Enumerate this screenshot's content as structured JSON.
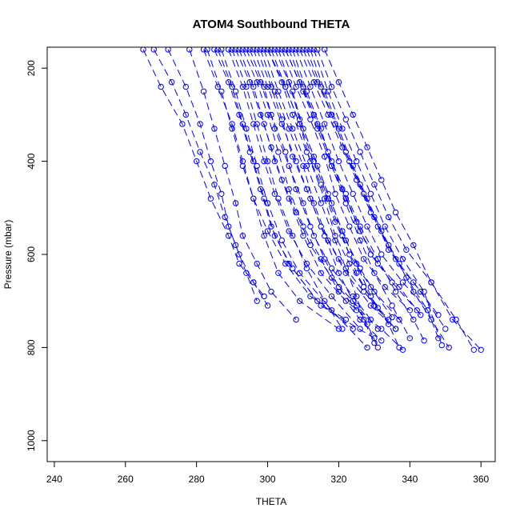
{
  "chart_data": {
    "type": "scatter",
    "title": "ATOM4 Southbound THETA",
    "xlabel": "THETA",
    "ylabel": "Pressure (mbar)",
    "xlim": [
      238,
      364
    ],
    "ylim": [
      1045,
      155
    ],
    "y_reversed": true,
    "x_ticks": [
      "240",
      "260",
      "280",
      "300",
      "320",
      "340",
      "360"
    ],
    "y_ticks": [
      "200",
      "400",
      "600",
      "800",
      "1000"
    ],
    "marker": "open-circle",
    "line_style": "dashed",
    "color": "#0000ff",
    "grid": false,
    "series": [
      {
        "x": [
          265,
          270,
          276,
          280,
          284,
          289,
          292,
          296,
          300
        ],
        "y": [
          160,
          240,
          320,
          400,
          480,
          560,
          620,
          660,
          710
        ]
      },
      {
        "x": [
          268,
          273,
          277,
          281,
          285,
          288,
          291,
          294,
          297
        ],
        "y": [
          160,
          230,
          300,
          380,
          450,
          520,
          580,
          640,
          700
        ]
      },
      {
        "x": [
          272,
          277,
          281,
          284,
          287,
          289,
          292,
          296,
          299
        ],
        "y": [
          160,
          240,
          320,
          400,
          470,
          540,
          600,
          660,
          690
        ]
      },
      {
        "x": [
          278,
          282,
          285,
          288,
          291,
          293,
          297,
          301,
          308
        ],
        "y": [
          160,
          250,
          330,
          410,
          490,
          560,
          620,
          680,
          740
        ]
      },
      {
        "x": [
          282,
          286,
          290,
          293,
          296,
          299,
          303,
          309,
          320
        ],
        "y": [
          160,
          240,
          320,
          400,
          480,
          560,
          640,
          700,
          760
        ]
      },
      {
        "x": [
          285,
          289,
          292,
          295,
          298,
          301,
          306,
          315,
          330
        ],
        "y": [
          160,
          230,
          300,
          380,
          460,
          540,
          620,
          710,
          780
        ]
      },
      {
        "x": [
          287,
          291,
          294,
          297,
          300,
          304,
          309,
          318,
          328
        ],
        "y": [
          160,
          250,
          330,
          410,
          490,
          570,
          640,
          720,
          800
        ]
      },
      {
        "x": [
          289,
          293,
          296,
          299,
          302,
          306,
          311,
          318,
          326
        ],
        "y": [
          160,
          240,
          320,
          400,
          470,
          550,
          620,
          690,
          760
        ]
      },
      {
        "x": [
          291,
          295,
          298,
          301,
          304,
          308,
          312,
          318,
          325,
          331
        ],
        "y": [
          160,
          230,
          300,
          370,
          440,
          510,
          580,
          650,
          710,
          760
        ]
      },
      {
        "x": [
          292,
          296,
          299,
          302,
          306,
          310,
          315,
          322,
          332,
          338
        ],
        "y": [
          160,
          240,
          320,
          400,
          480,
          560,
          640,
          700,
          760,
          805
        ]
      },
      {
        "x": [
          294,
          298,
          301,
          305,
          308,
          312,
          316,
          320,
          325
        ],
        "y": [
          160,
          230,
          300,
          380,
          460,
          540,
          610,
          670,
          720
        ]
      },
      {
        "x": [
          295,
          299,
          302,
          306,
          310,
          313,
          318,
          324,
          329
        ],
        "y": [
          160,
          240,
          330,
          410,
          490,
          560,
          630,
          690,
          740
        ]
      },
      {
        "x": [
          297,
          301,
          304,
          307,
          311,
          315,
          320,
          327,
          334
        ],
        "y": [
          160,
          240,
          310,
          390,
          460,
          540,
          610,
          680,
          740
        ]
      },
      {
        "x": [
          298,
          302,
          306,
          310,
          313,
          317,
          322,
          329,
          336
        ],
        "y": [
          160,
          250,
          330,
          410,
          490,
          570,
          640,
          710,
          760
        ]
      },
      {
        "x": [
          300,
          304,
          307,
          311,
          315,
          319,
          323,
          329,
          335
        ],
        "y": [
          160,
          230,
          300,
          380,
          450,
          530,
          600,
          670,
          735
        ]
      },
      {
        "x": [
          301,
          305,
          309,
          312,
          316,
          319,
          323,
          327,
          331
        ],
        "y": [
          160,
          240,
          320,
          400,
          480,
          560,
          620,
          670,
          715
        ]
      },
      {
        "x": [
          303,
          307,
          310,
          314,
          318,
          322,
          326,
          330,
          337
        ],
        "y": [
          160,
          250,
          330,
          410,
          490,
          570,
          630,
          680,
          740
        ]
      },
      {
        "x": [
          304,
          308,
          312,
          316,
          319,
          323,
          327,
          333,
          340
        ],
        "y": [
          160,
          240,
          310,
          390,
          470,
          540,
          610,
          670,
          720
        ]
      },
      {
        "x": [
          305,
          309,
          313,
          317,
          321,
          325,
          329,
          335,
          342
        ],
        "y": [
          160,
          230,
          300,
          380,
          460,
          530,
          600,
          660,
          720
        ]
      },
      {
        "x": [
          307,
          311,
          315,
          318,
          322,
          326,
          331,
          337,
          343
        ],
        "y": [
          160,
          250,
          330,
          410,
          480,
          550,
          620,
          670,
          730
        ]
      },
      {
        "x": [
          308,
          312,
          316,
          320,
          324,
          328,
          332,
          338,
          345
        ],
        "y": [
          160,
          240,
          320,
          400,
          470,
          540,
          600,
          660,
          720
        ]
      },
      {
        "x": [
          310,
          314,
          318,
          322,
          326,
          330,
          334,
          341,
          348
        ],
        "y": [
          160,
          230,
          300,
          380,
          450,
          520,
          590,
          660,
          730
        ]
      },
      {
        "x": [
          311,
          315,
          319,
          323,
          327,
          331,
          336,
          343,
          350
        ],
        "y": [
          160,
          240,
          320,
          400,
          470,
          540,
          610,
          680,
          760
        ]
      },
      {
        "x": [
          313,
          317,
          321,
          325,
          329,
          333,
          338,
          344,
          349
        ],
        "y": [
          160,
          250,
          330,
          400,
          470,
          540,
          610,
          680,
          795
        ]
      },
      {
        "x": [
          314,
          318,
          322,
          326,
          330,
          334,
          339,
          346,
          352,
          360
        ],
        "y": [
          160,
          240,
          310,
          380,
          450,
          520,
          590,
          660,
          740,
          805
        ]
      },
      {
        "x": [
          316,
          320,
          324,
          328,
          332,
          336,
          341,
          346,
          353,
          358
        ],
        "y": [
          160,
          230,
          300,
          370,
          440,
          510,
          580,
          660,
          740,
          805
        ]
      },
      {
        "x": [
          306,
          310,
          314,
          318,
          322,
          326,
          331,
          336,
          341,
          344
        ],
        "y": [
          160,
          240,
          320,
          400,
          470,
          540,
          610,
          680,
          740,
          785
        ]
      },
      {
        "x": [
          309,
          313,
          317,
          321,
          325,
          329,
          334,
          339,
          345,
          348
        ],
        "y": [
          160,
          230,
          300,
          370,
          440,
          510,
          580,
          650,
          720,
          780
        ]
      },
      {
        "x": [
          312,
          316,
          320,
          324,
          328,
          332,
          337,
          341,
          346,
          351
        ],
        "y": [
          160,
          250,
          330,
          410,
          480,
          550,
          620,
          680,
          740,
          800
        ]
      },
      {
        "x": [
          296,
          300,
          304,
          308,
          312,
          316,
          320,
          324,
          328,
          331
        ],
        "y": [
          160,
          240,
          320,
          400,
          480,
          560,
          640,
          700,
          750,
          800
        ]
      },
      {
        "x": [
          299,
          303,
          307,
          311,
          315,
          319,
          322,
          325,
          327,
          330
        ],
        "y": [
          160,
          250,
          330,
          410,
          490,
          570,
          630,
          690,
          740,
          790
        ]
      },
      {
        "x": [
          302,
          306,
          309,
          313,
          317,
          321,
          325,
          329,
          334,
          337
        ],
        "y": [
          160,
          230,
          310,
          390,
          470,
          550,
          620,
          690,
          750,
          800
        ]
      },
      {
        "x": [
          290,
          294,
          297,
          300,
          303,
          307,
          311,
          316,
          321
        ],
        "y": [
          160,
          240,
          320,
          400,
          480,
          560,
          630,
          700,
          760
        ]
      },
      {
        "x": [
          293,
          297,
          300,
          303,
          306,
          310,
          315,
          320,
          326,
          332
        ],
        "y": [
          160,
          230,
          300,
          380,
          460,
          540,
          610,
          680,
          740,
          785
        ]
      },
      {
        "x": [
          283,
          287,
          290,
          293,
          296,
          300,
          305,
          312,
          322
        ],
        "y": [
          160,
          250,
          330,
          410,
          480,
          550,
          620,
          690,
          740
        ]
      },
      {
        "x": [
          286,
          290,
          293,
          296,
          299,
          302,
          307,
          314,
          324
        ],
        "y": [
          160,
          240,
          320,
          400,
          480,
          560,
          630,
          700,
          760
        ]
      },
      {
        "x": [
          300,
          305,
          309,
          313,
          317,
          321,
          325,
          330,
          336
        ],
        "y": [
          160,
          240,
          320,
          400,
          480,
          560,
          640,
          710,
          760
        ]
      },
      {
        "x": [
          305,
          310,
          314,
          318,
          322,
          326,
          330,
          335,
          340
        ],
        "y": [
          160,
          250,
          330,
          410,
          490,
          570,
          640,
          710,
          780
        ]
      }
    ]
  }
}
